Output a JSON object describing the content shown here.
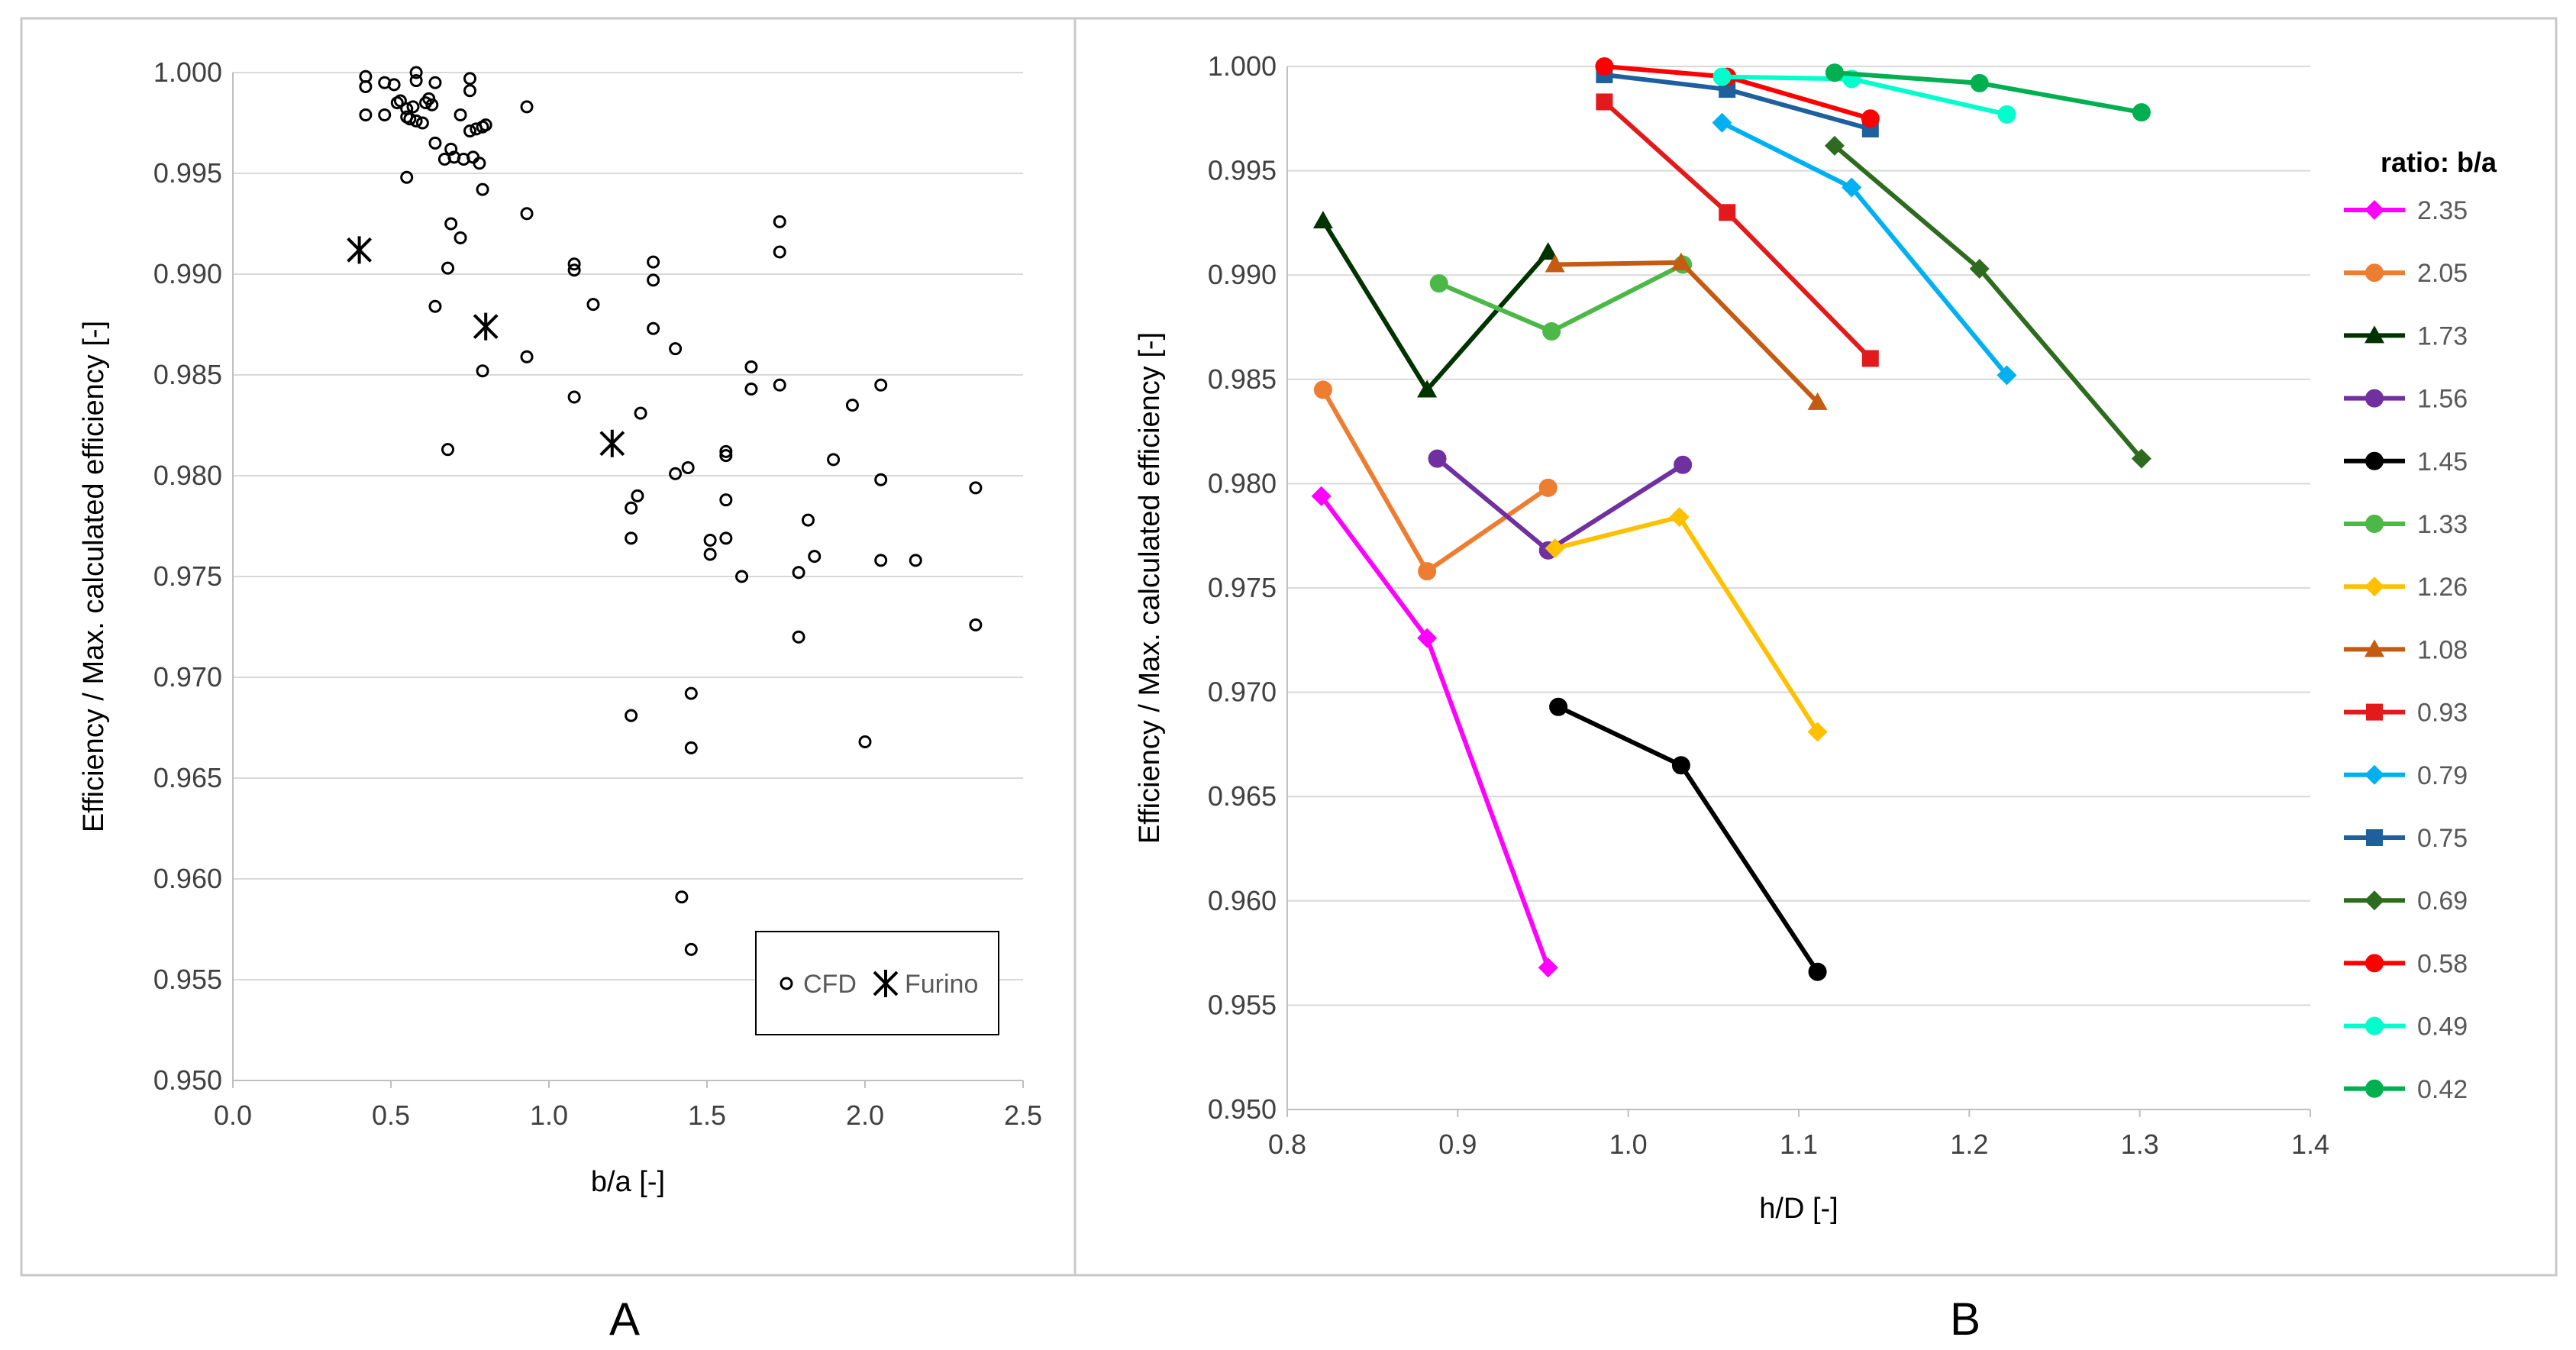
{
  "chart_data": [
    {
      "type": "scatter",
      "panel_label": "A",
      "title": "",
      "xlabel": "b/a [-]",
      "ylabel": "Efficiency / Max. calculated efficiency [-]",
      "xlim": [
        0,
        2.5
      ],
      "ylim": [
        0.95,
        1.0
      ],
      "xticks": [
        0.0,
        0.5,
        1.0,
        1.5,
        2.0,
        2.5
      ],
      "xtick_labels": [
        "0.0",
        "0.5",
        "1.0",
        "1.5",
        "2.0",
        "2.5"
      ],
      "yticks": [
        0.95,
        0.955,
        0.96,
        0.965,
        0.97,
        0.975,
        0.98,
        0.985,
        0.99,
        0.995,
        1.0
      ],
      "ytick_labels": [
        "0.950",
        "0.955",
        "0.960",
        "0.965",
        "0.970",
        "0.975",
        "0.980",
        "0.985",
        "0.990",
        "0.995",
        "1.000"
      ],
      "legend_position": "bottom-right",
      "series": [
        {
          "name": "CFD",
          "marker": "circle-open",
          "color": "#000000",
          "points": [
            [
              0.42,
              0.9998
            ],
            [
              0.42,
              0.9993
            ],
            [
              0.42,
              0.9979
            ],
            [
              0.48,
              0.9995
            ],
            [
              0.48,
              0.9979
            ],
            [
              0.51,
              0.9994
            ],
            [
              0.52,
              0.9985
            ],
            [
              0.53,
              0.9986
            ],
            [
              0.55,
              0.9982
            ],
            [
              0.55,
              0.9978
            ],
            [
              0.56,
              0.9977
            ],
            [
              0.57,
              0.9983
            ],
            [
              0.58,
              0.9976
            ],
            [
              0.58,
              1.0
            ],
            [
              0.58,
              0.9996
            ],
            [
              0.6,
              0.9975
            ],
            [
              0.61,
              0.9985
            ],
            [
              0.62,
              0.9987
            ],
            [
              0.63,
              0.9984
            ],
            [
              0.64,
              0.9995
            ],
            [
              0.64,
              0.9965
            ],
            [
              0.67,
              0.9957
            ],
            [
              0.69,
              0.9962
            ],
            [
              0.7,
              0.9958
            ],
            [
              0.72,
              0.9979
            ],
            [
              0.73,
              0.9957
            ],
            [
              0.75,
              0.9971
            ],
            [
              0.75,
              0.9997
            ],
            [
              0.75,
              0.9991
            ],
            [
              0.76,
              0.9958
            ],
            [
              0.77,
              0.9972
            ],
            [
              0.78,
              0.9955
            ],
            [
              0.79,
              0.9973
            ],
            [
              0.8,
              0.9974
            ],
            [
              0.79,
              0.9942
            ],
            [
              0.55,
              0.9948
            ],
            [
              0.69,
              0.9925
            ],
            [
              0.72,
              0.9918
            ],
            [
              0.93,
              0.9983
            ],
            [
              0.93,
              0.993
            ],
            [
              0.68,
              0.9903
            ],
            [
              0.64,
              0.9884
            ],
            [
              0.79,
              0.9852
            ],
            [
              0.68,
              0.9813
            ],
            [
              0.93,
              0.9859
            ],
            [
              1.08,
              0.9905
            ],
            [
              1.08,
              0.9902
            ],
            [
              1.14,
              0.9885
            ],
            [
              1.08,
              0.9839
            ],
            [
              1.33,
              0.9906
            ],
            [
              1.33,
              0.9897
            ],
            [
              1.33,
              0.9873
            ],
            [
              1.4,
              0.9863
            ],
            [
              1.29,
              0.9831
            ],
            [
              1.26,
              0.9784
            ],
            [
              1.28,
              0.979
            ],
            [
              1.26,
              0.9769
            ],
            [
              1.4,
              0.9801
            ],
            [
              1.44,
              0.9804
            ],
            [
              1.56,
              0.9812
            ],
            [
              1.56,
              0.981
            ],
            [
              1.56,
              0.9788
            ],
            [
              1.51,
              0.9768
            ],
            [
              1.51,
              0.9761
            ],
            [
              1.56,
              0.9769
            ],
            [
              1.61,
              0.975
            ],
            [
              1.64,
              0.9854
            ],
            [
              1.64,
              0.9843
            ],
            [
              1.73,
              0.9926
            ],
            [
              1.73,
              0.9911
            ],
            [
              1.73,
              0.9845
            ],
            [
              1.79,
              0.9752
            ],
            [
              1.82,
              0.9778
            ],
            [
              1.84,
              0.976
            ],
            [
              1.79,
              0.972
            ],
            [
              1.9,
              0.9808
            ],
            [
              1.96,
              0.9835
            ],
            [
              2.05,
              0.9845
            ],
            [
              2.05,
              0.9798
            ],
            [
              2.05,
              0.9758
            ],
            [
              2.16,
              0.9758
            ],
            [
              2.35,
              0.9794
            ],
            [
              2.35,
              0.9726
            ],
            [
              1.26,
              0.9681
            ],
            [
              1.45,
              0.9692
            ],
            [
              1.45,
              0.9665
            ],
            [
              1.42,
              0.9591
            ],
            [
              1.45,
              0.9565
            ],
            [
              2.0,
              0.9668
            ]
          ]
        },
        {
          "name": "Furino",
          "marker": "asterisk",
          "color": "#000000",
          "points": [
            [
              0.4,
              0.9912
            ],
            [
              0.8,
              0.9874
            ],
            [
              1.2,
              0.9816
            ]
          ]
        }
      ]
    },
    {
      "type": "line",
      "panel_label": "B",
      "title": "",
      "xlabel": "h/D [-]",
      "ylabel": "Efficiency / Max. calculated efficiency [-]",
      "xlim": [
        0.8,
        1.4
      ],
      "ylim": [
        0.95,
        1.0
      ],
      "xticks": [
        0.8,
        0.9,
        1.0,
        1.1,
        1.2,
        1.3,
        1.4
      ],
      "xtick_labels": [
        "0.8",
        "0.9",
        "1.0",
        "1.1",
        "1.2",
        "1.3",
        "1.4"
      ],
      "yticks": [
        0.95,
        0.955,
        0.96,
        0.965,
        0.97,
        0.975,
        0.98,
        0.985,
        0.99,
        0.995,
        1.0
      ],
      "ytick_labels": [
        "0.950",
        "0.955",
        "0.960",
        "0.965",
        "0.970",
        "0.975",
        "0.980",
        "0.985",
        "0.990",
        "0.995",
        "1.000"
      ],
      "legend_title": "ratio: b/a",
      "legend_position": "right",
      "series": [
        {
          "name": "2.35",
          "color": "#ff00ff",
          "marker": "diamond",
          "x": [
            0.82,
            0.882,
            0.953
          ],
          "y": [
            0.9794,
            0.9726,
            0.9568
          ]
        },
        {
          "name": "2.05",
          "color": "#ed7d31",
          "marker": "circle",
          "x": [
            0.821,
            0.882,
            0.953
          ],
          "y": [
            0.9845,
            0.9758,
            0.9798
          ]
        },
        {
          "name": "1.73",
          "color": "#003300",
          "marker": "triangle",
          "x": [
            0.821,
            0.882,
            0.953
          ],
          "y": [
            0.9926,
            0.9845,
            0.9911
          ]
        },
        {
          "name": "1.56",
          "color": "#7030a0",
          "marker": "circle",
          "x": [
            0.888,
            0.953,
            1.032
          ],
          "y": [
            0.9812,
            0.9768,
            0.9809
          ]
        },
        {
          "name": "1.45",
          "color": "#000000",
          "marker": "circle",
          "x": [
            0.959,
            1.031,
            1.111
          ],
          "y": [
            0.9693,
            0.9665,
            0.9566
          ]
        },
        {
          "name": "1.33",
          "color": "#4cb848",
          "marker": "circle",
          "x": [
            0.889,
            0.955,
            1.032
          ],
          "y": [
            0.9896,
            0.9873,
            0.9905
          ]
        },
        {
          "name": "1.26",
          "color": "#ffc000",
          "marker": "diamond",
          "x": [
            0.957,
            1.03,
            1.111
          ],
          "y": [
            0.9769,
            0.9784,
            0.9681
          ]
        },
        {
          "name": "1.08",
          "color": "#c55a11",
          "marker": "triangle",
          "x": [
            0.957,
            1.031,
            1.111
          ],
          "y": [
            0.9905,
            0.9906,
            0.9839
          ]
        },
        {
          "name": "0.93",
          "color": "#e31a1c",
          "marker": "square",
          "x": [
            0.986,
            1.058,
            1.142
          ],
          "y": [
            0.9983,
            0.993,
            0.986
          ]
        },
        {
          "name": "0.79",
          "color": "#00b0f0",
          "marker": "diamond",
          "x": [
            1.055,
            1.131,
            1.222
          ],
          "y": [
            0.9973,
            0.9942,
            0.9852
          ]
        },
        {
          "name": "0.75",
          "color": "#1f5f9e",
          "marker": "square",
          "x": [
            0.986,
            1.058,
            1.142
          ],
          "y": [
            0.9996,
            0.9989,
            0.997
          ]
        },
        {
          "name": "0.69",
          "color": "#2e6b1f",
          "marker": "diamond",
          "x": [
            1.121,
            1.206,
            1.301
          ],
          "y": [
            0.9962,
            0.9903,
            0.9812
          ]
        },
        {
          "name": "0.58",
          "color": "#ff0000",
          "marker": "circle",
          "x": [
            0.986,
            1.058,
            1.142
          ],
          "y": [
            1.0,
            0.9995,
            0.9975
          ]
        },
        {
          "name": "0.49",
          "color": "#00ffcc",
          "marker": "circle",
          "x": [
            1.055,
            1.131,
            1.222
          ],
          "y": [
            0.9995,
            0.9994,
            0.9977
          ]
        },
        {
          "name": "0.42",
          "color": "#00b050",
          "marker": "circle",
          "x": [
            1.121,
            1.206,
            1.301
          ],
          "y": [
            0.9997,
            0.9992,
            0.9978
          ]
        }
      ]
    }
  ]
}
